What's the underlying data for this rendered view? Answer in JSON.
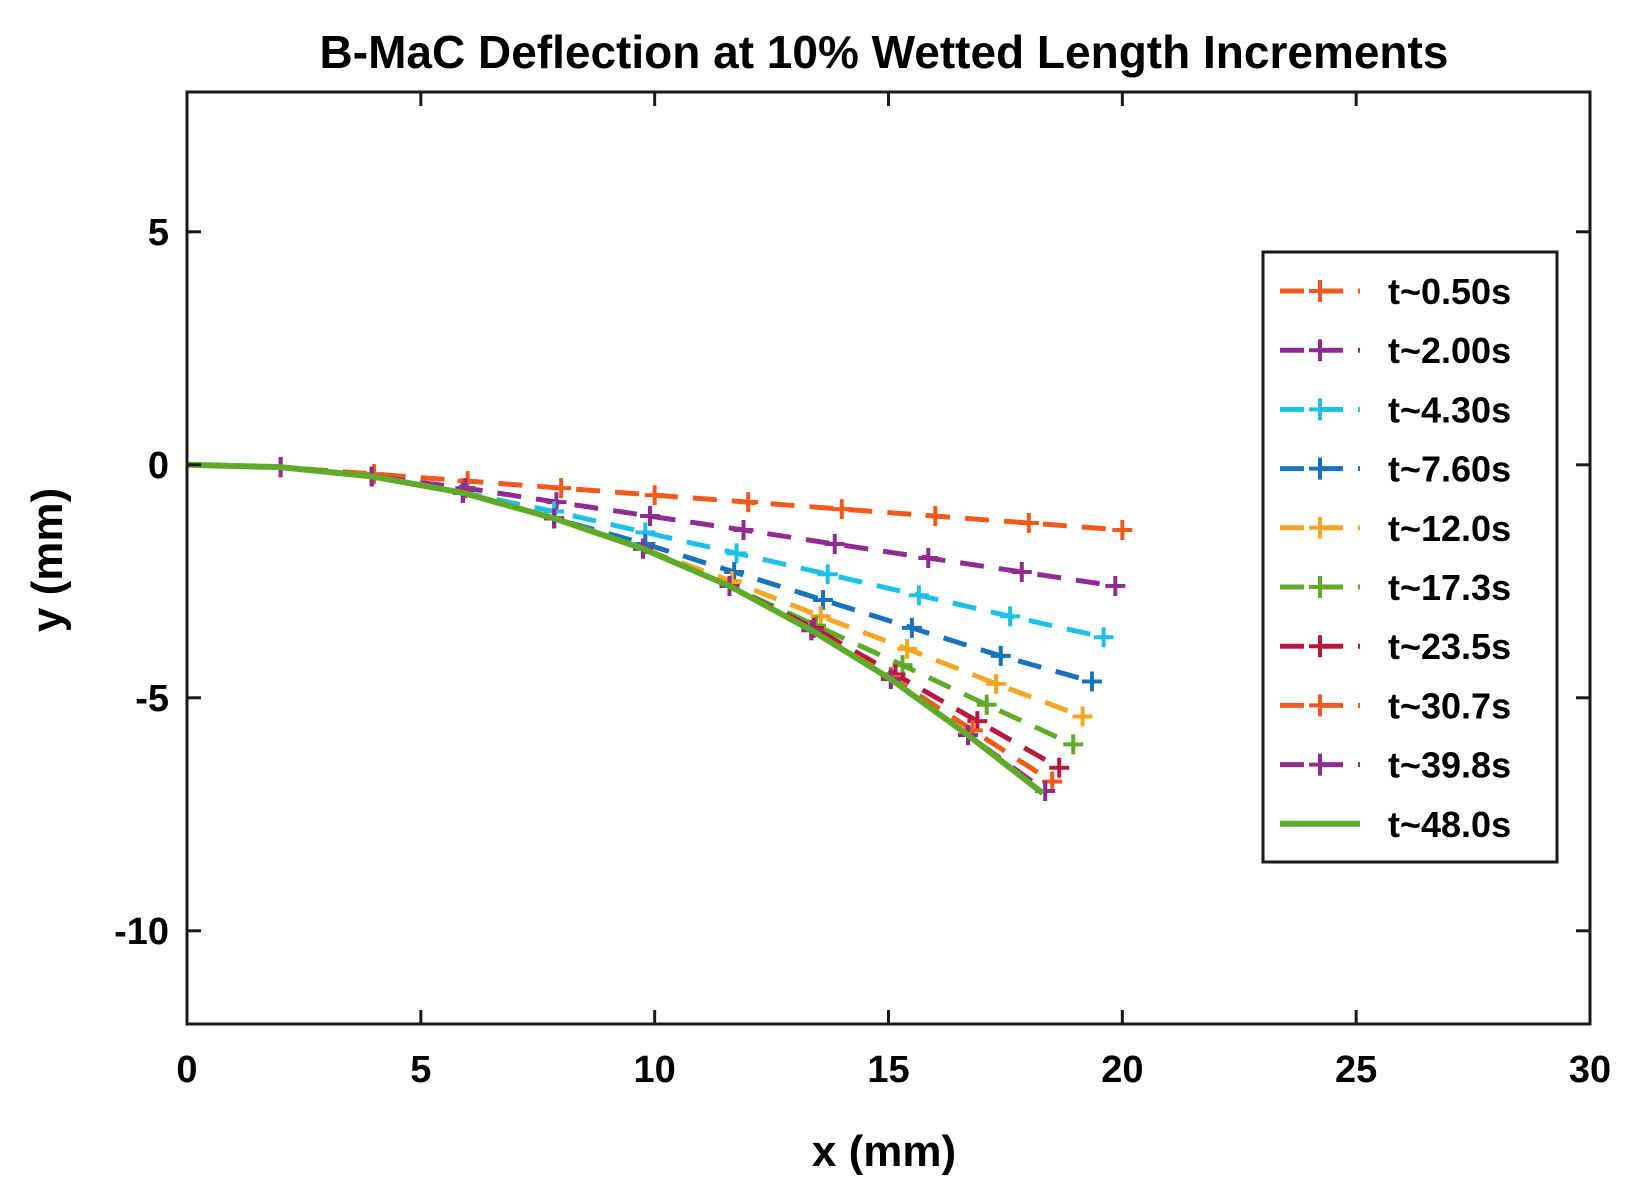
{
  "chart_data": {
    "type": "line",
    "title": "B-MaC Deflection at 10% Wetted Length Increments",
    "xlabel": "x (mm)",
    "ylabel": "y (mm)",
    "xlim": [
      0,
      30
    ],
    "ylim": [
      -12,
      8
    ],
    "xticks": [
      0,
      5,
      10,
      15,
      20,
      25,
      30
    ],
    "xtick_labels": [
      "0",
      "5",
      "10",
      "15",
      "20",
      "25",
      "30"
    ],
    "yticks": [
      -10,
      -5,
      0,
      5
    ],
    "ytick_labels": [
      "-10",
      "-5",
      "0",
      "5"
    ],
    "grid": false,
    "legend_position": "right",
    "series": [
      {
        "name": "t~0.50s",
        "color": "#F25A1D",
        "style": "dashed",
        "marker": "+",
        "x": [
          0,
          2,
          4,
          6,
          8,
          10,
          12,
          14,
          16,
          18,
          20
        ],
        "y": [
          0,
          -0.05,
          -0.2,
          -0.35,
          -0.5,
          -0.65,
          -0.8,
          -0.95,
          -1.1,
          -1.25,
          -1.4
        ]
      },
      {
        "name": "t~2.00s",
        "color": "#8E2C93",
        "style": "dashed",
        "marker": "+",
        "x": [
          0,
          2,
          3.95,
          5.95,
          7.9,
          9.9,
          11.9,
          13.85,
          15.85,
          17.85,
          19.85
        ],
        "y": [
          0,
          -0.05,
          -0.25,
          -0.5,
          -0.8,
          -1.1,
          -1.4,
          -1.7,
          -2.0,
          -2.3,
          -2.6
        ]
      },
      {
        "name": "t~4.30s",
        "color": "#1EBFE8",
        "style": "dashed",
        "marker": "+",
        "x": [
          0,
          2,
          3.95,
          5.9,
          7.85,
          9.8,
          11.75,
          13.7,
          15.65,
          17.6,
          19.6
        ],
        "y": [
          0,
          -0.05,
          -0.25,
          -0.6,
          -1.0,
          -1.45,
          -1.9,
          -2.35,
          -2.8,
          -3.25,
          -3.7
        ]
      },
      {
        "name": "t~7.60s",
        "color": "#1A72BC",
        "style": "dashed",
        "marker": "+",
        "x": [
          0,
          2,
          3.95,
          5.9,
          7.85,
          9.8,
          11.7,
          13.6,
          15.5,
          17.4,
          19.35
        ],
        "y": [
          0,
          -0.05,
          -0.25,
          -0.6,
          -1.15,
          -1.7,
          -2.3,
          -2.9,
          -3.5,
          -4.1,
          -4.65
        ]
      },
      {
        "name": "t~12.0s",
        "color": "#F5A623",
        "style": "dashed",
        "marker": "+",
        "x": [
          0,
          2,
          3.95,
          5.9,
          7.85,
          9.75,
          11.65,
          13.55,
          15.4,
          17.3,
          19.15
        ],
        "y": [
          0,
          -0.05,
          -0.25,
          -0.6,
          -1.15,
          -1.8,
          -2.5,
          -3.25,
          -3.95,
          -4.7,
          -5.4
        ]
      },
      {
        "name": "t~17.3s",
        "color": "#5FAA28",
        "style": "dashed",
        "marker": "+",
        "x": [
          0,
          2,
          3.95,
          5.9,
          7.85,
          9.75,
          11.6,
          13.45,
          15.3,
          17.1,
          18.95
        ],
        "y": [
          0,
          -0.05,
          -0.25,
          -0.6,
          -1.15,
          -1.8,
          -2.6,
          -3.45,
          -4.3,
          -5.15,
          -6.0
        ]
      },
      {
        "name": "t~23.5s",
        "color": "#B8183E",
        "style": "dashed",
        "marker": "+",
        "x": [
          0,
          2,
          3.95,
          5.9,
          7.85,
          9.75,
          11.6,
          13.4,
          15.15,
          16.9,
          18.65
        ],
        "y": [
          0,
          -0.05,
          -0.25,
          -0.6,
          -1.15,
          -1.8,
          -2.6,
          -3.5,
          -4.5,
          -5.5,
          -6.5
        ]
      },
      {
        "name": "t~30.7s",
        "color": "#F25A1D",
        "style": "dashed",
        "marker": "+",
        "x": [
          0,
          2,
          3.95,
          5.9,
          7.85,
          9.75,
          11.6,
          13.35,
          15.05,
          16.8,
          18.5
        ],
        "y": [
          0,
          -0.05,
          -0.25,
          -0.6,
          -1.15,
          -1.8,
          -2.6,
          -3.55,
          -4.55,
          -5.7,
          -6.8
        ]
      },
      {
        "name": "t~39.8s",
        "color": "#8E2C93",
        "style": "dashed",
        "marker": "+",
        "x": [
          0,
          2,
          3.95,
          5.9,
          7.85,
          9.75,
          11.6,
          13.35,
          15.05,
          16.7,
          18.35
        ],
        "y": [
          0,
          -0.05,
          -0.25,
          -0.6,
          -1.15,
          -1.8,
          -2.6,
          -3.55,
          -4.6,
          -5.8,
          -7.0
        ]
      },
      {
        "name": "t~48.0s",
        "color": "#5FAA28",
        "style": "solid",
        "marker": "",
        "x": [
          0,
          2,
          3.95,
          5.9,
          7.85,
          9.75,
          11.6,
          13.35,
          15.05,
          16.7,
          18.3
        ],
        "y": [
          0,
          -0.05,
          -0.25,
          -0.6,
          -1.15,
          -1.8,
          -2.6,
          -3.55,
          -4.6,
          -5.8,
          -7.05
        ]
      }
    ]
  }
}
